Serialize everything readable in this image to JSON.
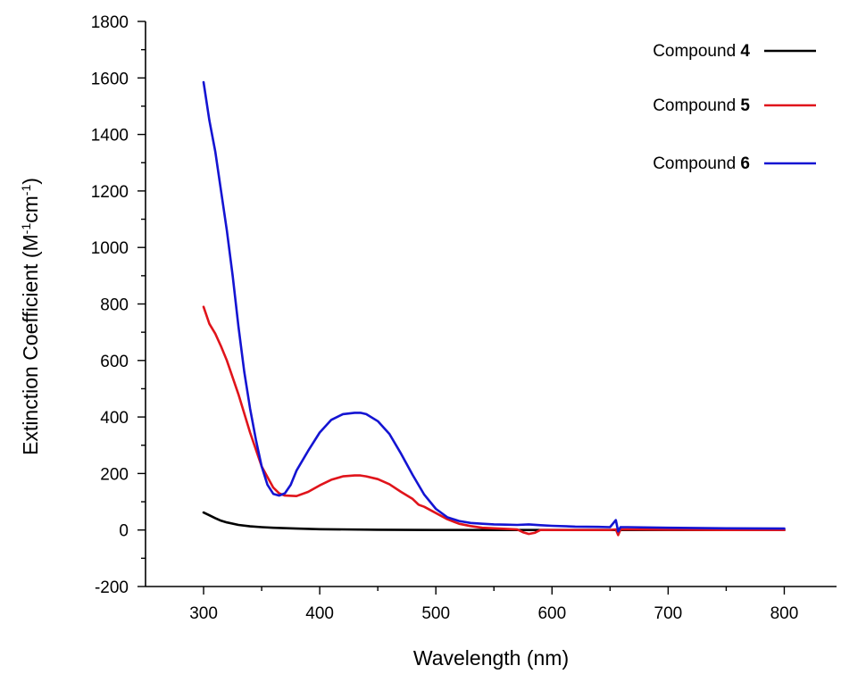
{
  "chart_data": {
    "type": "line",
    "xlabel": "Wavelength (nm)",
    "ylabel": {
      "prefix": "Extinction Coefficient (M",
      "sup1": "-1",
      "middle": "cm",
      "sup2": "-1",
      "suffix": ")"
    },
    "xlim": [
      250,
      845
    ],
    "ylim": [
      -200,
      1800
    ],
    "x_ticks": [
      300,
      400,
      500,
      600,
      700,
      800
    ],
    "x_tick_labels": [
      "300",
      "400",
      "500",
      "600",
      "700",
      "800"
    ],
    "x_minor_ticks": [
      350,
      450,
      550,
      650,
      750
    ],
    "y_ticks": [
      -200,
      0,
      200,
      400,
      600,
      800,
      1000,
      1200,
      1400,
      1600,
      1800
    ],
    "y_tick_labels": [
      "-200",
      "0",
      "200",
      "400",
      "600",
      "800",
      "1000",
      "1200",
      "1400",
      "1600",
      "1800"
    ],
    "y_minor_ticks": [
      -100,
      100,
      300,
      500,
      700,
      900,
      1100,
      1300,
      1500,
      1700
    ],
    "grid": false,
    "legend_position": "top-right",
    "series": [
      {
        "name_prefix": "Compound ",
        "name_bold": "4",
        "color": "#000000",
        "x": [
          300,
          305,
          310,
          315,
          320,
          330,
          340,
          350,
          360,
          380,
          400,
          450,
          500,
          550,
          600,
          650,
          700,
          750,
          800
        ],
        "y": [
          62,
          52,
          42,
          33,
          27,
          18,
          13,
          10,
          8,
          5,
          3,
          1,
          0,
          0,
          0,
          0,
          0,
          0,
          0
        ]
      },
      {
        "name_prefix": "Compound ",
        "name_bold": "5",
        "color": "#e0141b",
        "x": [
          300,
          305,
          310,
          315,
          320,
          330,
          340,
          350,
          360,
          365,
          370,
          380,
          390,
          400,
          410,
          420,
          430,
          435,
          440,
          450,
          460,
          470,
          480,
          485,
          486,
          490,
          500,
          510,
          520,
          530,
          540,
          550,
          560,
          570,
          575,
          580,
          585,
          590,
          600,
          620,
          640,
          650,
          655,
          657,
          659,
          665,
          700,
          750,
          800
        ],
        "y": [
          790,
          730,
          695,
          650,
          600,
          480,
          345,
          225,
          150,
          130,
          122,
          120,
          135,
          158,
          178,
          190,
          193,
          193,
          190,
          180,
          162,
          135,
          110,
          90,
          88,
          82,
          60,
          38,
          22,
          14,
          8,
          6,
          4,
          2,
          -8,
          -14,
          -10,
          0,
          0,
          0,
          0,
          0,
          2,
          -18,
          2,
          2,
          1,
          0,
          0
        ]
      },
      {
        "name_prefix": "Compound ",
        "name_bold": "6",
        "color": "#1414d2",
        "x": [
          300,
          305,
          310,
          315,
          320,
          325,
          330,
          335,
          340,
          345,
          350,
          355,
          360,
          365,
          370,
          375,
          380,
          390,
          400,
          410,
          420,
          430,
          435,
          440,
          450,
          460,
          470,
          480,
          490,
          500,
          510,
          520,
          530,
          540,
          550,
          560,
          570,
          580,
          590,
          600,
          620,
          640,
          650,
          655,
          657,
          659,
          665,
          700,
          750,
          800
        ],
        "y": [
          1585,
          1450,
          1340,
          1200,
          1060,
          900,
          720,
          560,
          430,
          320,
          225,
          160,
          128,
          122,
          130,
          160,
          210,
          280,
          345,
          390,
          410,
          415,
          415,
          410,
          385,
          340,
          270,
          195,
          125,
          75,
          45,
          32,
          25,
          22,
          20,
          19,
          18,
          20,
          17,
          15,
          12,
          11,
          10,
          35,
          -5,
          10,
          10,
          8,
          6,
          5
        ]
      }
    ]
  }
}
